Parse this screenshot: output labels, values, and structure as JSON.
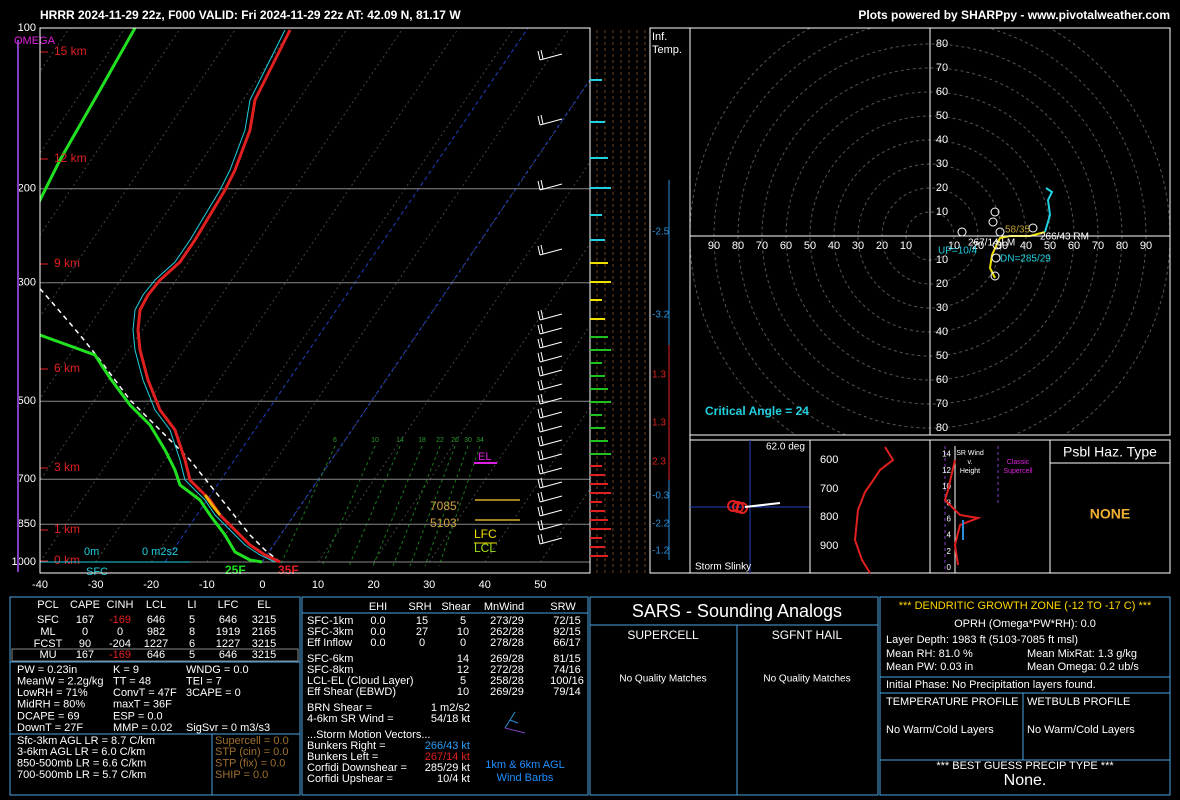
{
  "header": {
    "left": "HRRR 2024-11-29 22z, F000  VALID: Fri 2024-11-29 22z  AT: 42.09 N, 81.17 W",
    "right": "Plots powered by SHARPpy - www.pivotalweather.com"
  },
  "skewt": {
    "omega": "OMEGA",
    "pressure_labels": [
      "100",
      "200",
      "300",
      "500",
      "700",
      "850",
      "1000"
    ],
    "height_labels": [
      "15 km",
      "12 km",
      "9 km",
      "6 km",
      "3 km",
      "1 km",
      "0 km"
    ],
    "temp_labels": [
      "-40",
      "-30",
      "-20",
      "-10",
      "0",
      "10",
      "20",
      "30",
      "40",
      "50"
    ],
    "mixing_ratios": [
      "6",
      "10",
      "14",
      "18",
      "22",
      "26",
      "30",
      "34"
    ],
    "sfc": "SFC",
    "sfc_height": "0m",
    "srh": "0 m2s2",
    "dewpoint": "25F",
    "temperature": "35F",
    "el": "EL",
    "lfc": "LFC",
    "lcl": "LCL",
    "dgz_top": "7085'",
    "dgz_bottom": "5103'"
  },
  "inflow": {
    "title_lines": [
      "Inf.",
      "Temp."
    ],
    "values": [
      "-2.5",
      "-3.2",
      "1.3",
      "1.3",
      "2.3",
      "-0.3",
      "-2.2",
      "-1.2"
    ]
  },
  "hodograph": {
    "ring_labels_up": [
      "80",
      "70",
      "60",
      "50",
      "40",
      "30",
      "20",
      "10"
    ],
    "ring_labels_down": [
      "10",
      "20",
      "30",
      "40",
      "50",
      "60",
      "70",
      "80"
    ],
    "ring_labels_left": [
      "90",
      "80",
      "70",
      "60",
      "50",
      "40",
      "30",
      "20",
      "10"
    ],
    "ring_labels_right": [
      "10",
      "20",
      "30",
      "40",
      "50",
      "60",
      "70",
      "80",
      "90"
    ],
    "critical_angle": "Critical Angle = 24",
    "lm": "267/14 LM",
    "rm": "266/43 RM",
    "up": "UP=10/4",
    "dn": "DN=285/29",
    "mean": "58/35"
  },
  "slinky": {
    "angle": "62.0 deg",
    "label": "Storm Slinky"
  },
  "theta": {
    "pressures": [
      "600",
      "700",
      "800",
      "900"
    ]
  },
  "srwind": {
    "title_lines": [
      "SR Wind",
      "v.",
      "Height"
    ],
    "classic": [
      "Classic",
      "Supercell"
    ],
    "heights": [
      "14",
      "12",
      "10",
      "8",
      "6",
      "4",
      "2",
      "0"
    ]
  },
  "hazard": {
    "title": "Psbl Haz. Type",
    "value": "NONE"
  },
  "parcels": {
    "header": [
      "PCL",
      "CAPE",
      "CINH",
      "LCL",
      "LI",
      "LFC",
      "EL"
    ],
    "rows": [
      [
        "SFC",
        "167",
        "-169",
        "646",
        "5",
        "646",
        "3215"
      ],
      [
        "ML",
        "0",
        "0",
        "982",
        "8",
        "1919",
        "2165"
      ],
      [
        "FCST",
        "90",
        "-204",
        "1227",
        "6",
        "1227",
        "3215"
      ],
      [
        "MU",
        "167",
        "-169",
        "646",
        "5",
        "646",
        "3215"
      ]
    ]
  },
  "indices": {
    "col1": [
      "PW = 0.23in",
      "MeanW = 2.2g/kg",
      "LowRH = 71%",
      "MidRH = 80%",
      "DCAPE = 69",
      "DownT = 27F"
    ],
    "col2": [
      "K = 9",
      "TT = 48",
      "ConvT = 47F",
      "maxT = 36F",
      "ESP = 0.0",
      "MMP = 0.02"
    ],
    "col3": [
      "WNDG = 0.0",
      "TEI = 7",
      "3CAPE = 0",
      "SigSvr = 0 m3/s3"
    ]
  },
  "lapse_rates": [
    "Sfc-3km AGL LR = 8.7 C/km",
    "3-6km AGL LR = 6.0 C/km",
    "850-500mb LR = 6.6 C/km",
    "700-500mb LR = 5.7 C/km"
  ],
  "composites": [
    "Supercell = 0.0",
    "STP (cin) = 0.0",
    "STP (fix) = 0.0",
    "SHIP = 0.0"
  ],
  "kinematics": {
    "header": [
      "EHI",
      "SRH",
      "Shear",
      "MnWind",
      "SRW"
    ],
    "rows": [
      [
        "SFC-1km",
        "0.0",
        "15",
        "5",
        "273/29",
        "72/15"
      ],
      [
        "SFC-3km",
        "0.0",
        "27",
        "10",
        "262/28",
        "92/15"
      ],
      [
        "Eff Inflow",
        "0.0",
        "0",
        "0",
        "278/28",
        "66/17"
      ],
      [
        "SFC-6km",
        null,
        null,
        "14",
        "269/28",
        "81/15"
      ],
      [
        "SFC-8km",
        null,
        null,
        "12",
        "272/28",
        "74/16"
      ],
      [
        "LCL-EL (Cloud Layer)",
        null,
        null,
        "5",
        "258/28",
        "100/16"
      ],
      [
        "Eff Shear (EBWD)",
        null,
        null,
        "10",
        "269/29",
        "79/14"
      ]
    ],
    "brn": [
      "BRN Shear =",
      "1 m2/s2"
    ],
    "sr46": [
      "4-6km SR Wind =",
      "54/18 kt"
    ],
    "storm_title": "...Storm Motion Vectors...",
    "vectors": [
      [
        "Bunkers Right =",
        "266/43 kt"
      ],
      [
        "Bunkers Left =",
        "267/14 kt"
      ],
      [
        "Corfidi Downshear =",
        "285/29 kt"
      ],
      [
        "Corfidi Upshear =",
        "10/4 kt"
      ]
    ],
    "barbs_label": [
      "1km & 6km AGL",
      "Wind Barbs"
    ]
  },
  "sars": {
    "title": "SARS - Sounding Analogs",
    "supercell": "SUPERCELL",
    "hail": "SGFNT HAIL",
    "supercell_result": "No Quality Matches",
    "hail_result": "No Quality Matches"
  },
  "dgz": {
    "title": "*** DENDRITIC GROWTH ZONE (-12 TO -17 C) ***",
    "oprh": "OPRH (Omega*PW*RH): 0.0",
    "depth": "Layer Depth: 1983 ft (5103-7085 ft msl)",
    "mean_rh": "Mean RH: 81.0 %",
    "mean_mixrat": "Mean MixRat: 1.3 g/kg",
    "mean_pw": "Mean PW: 0.03 in",
    "mean_omega": "Mean Omega: 0.2 ub/s",
    "initial_phase": "Initial Phase:  No Precipitation layers found.",
    "temp_profile": "TEMPERATURE PROFILE",
    "wetbulb_profile": "WETBULB PROFILE",
    "temp_result": "No Warm/Cold Layers",
    "wetbulb_result": "No Warm/Cold Layers",
    "precip_title": "*** BEST GUESS PRECIP TYPE ***",
    "precip": "None."
  }
}
